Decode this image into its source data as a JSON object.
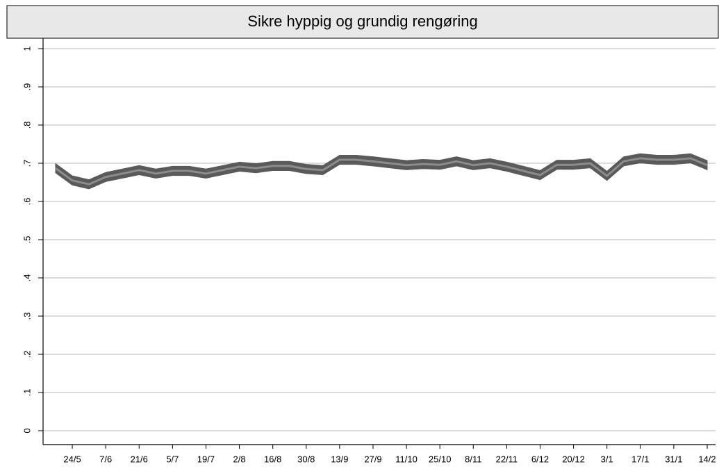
{
  "chart_data": {
    "type": "line",
    "title": "Sikre hyppig og grundig rengøring",
    "categories": [
      null,
      "24/5",
      null,
      "7/6",
      null,
      "21/6",
      null,
      "5/7",
      null,
      "19/7",
      null,
      "2/8",
      null,
      "16/8",
      null,
      "30/8",
      null,
      "13/9",
      null,
      "27/9",
      null,
      "11/10",
      null,
      "25/10",
      null,
      "8/11",
      null,
      "22/11",
      null,
      "6/12",
      null,
      "20/12",
      null,
      "3/1",
      null,
      "17/1",
      null,
      "31/1",
      null,
      "14/2"
    ],
    "values": [
      0.687,
      0.655,
      0.645,
      0.664,
      0.673,
      0.682,
      0.673,
      0.68,
      0.68,
      0.673,
      0.682,
      0.691,
      0.687,
      0.693,
      0.693,
      0.685,
      0.682,
      0.709,
      0.709,
      0.705,
      0.7,
      0.695,
      0.698,
      0.696,
      0.705,
      0.695,
      0.7,
      0.691,
      0.68,
      0.669,
      0.696,
      0.696,
      0.7,
      0.667,
      0.705,
      0.713,
      0.709,
      0.709,
      0.713,
      0.695
    ],
    "lower": [
      0.675,
      0.643,
      0.633,
      0.652,
      0.661,
      0.67,
      0.661,
      0.668,
      0.668,
      0.661,
      0.67,
      0.679,
      0.675,
      0.681,
      0.681,
      0.673,
      0.67,
      0.697,
      0.697,
      0.693,
      0.688,
      0.683,
      0.686,
      0.684,
      0.693,
      0.683,
      0.688,
      0.679,
      0.668,
      0.657,
      0.684,
      0.684,
      0.688,
      0.655,
      0.693,
      0.701,
      0.697,
      0.697,
      0.701,
      0.683
    ],
    "upper": [
      0.699,
      0.667,
      0.657,
      0.676,
      0.685,
      0.694,
      0.685,
      0.692,
      0.692,
      0.685,
      0.694,
      0.703,
      0.699,
      0.705,
      0.705,
      0.697,
      0.694,
      0.721,
      0.721,
      0.717,
      0.712,
      0.707,
      0.71,
      0.708,
      0.717,
      0.707,
      0.712,
      0.703,
      0.692,
      0.681,
      0.708,
      0.708,
      0.712,
      0.679,
      0.717,
      0.725,
      0.721,
      0.721,
      0.725,
      0.707
    ],
    "color": "#8c8c8c",
    "band_color": "#5a5a5a",
    "ylim": [
      -0.0364,
      1.0273
    ],
    "yticks": [
      0,
      {
        "value": 0.1,
        "label": ".1"
      },
      {
        "value": 0.2,
        "label": ".2"
      },
      {
        "value": 0.3,
        "label": ".3"
      },
      {
        "value": 0.4,
        "label": ".4"
      },
      {
        "value": 0.5,
        "label": ".5"
      },
      {
        "value": 0.6,
        "label": ".6"
      },
      {
        "value": 0.7,
        "label": ".7"
      },
      {
        "value": 0.8,
        "label": ".8"
      },
      {
        "value": 0.9,
        "label": ".9"
      },
      1
    ],
    "grid": true
  }
}
